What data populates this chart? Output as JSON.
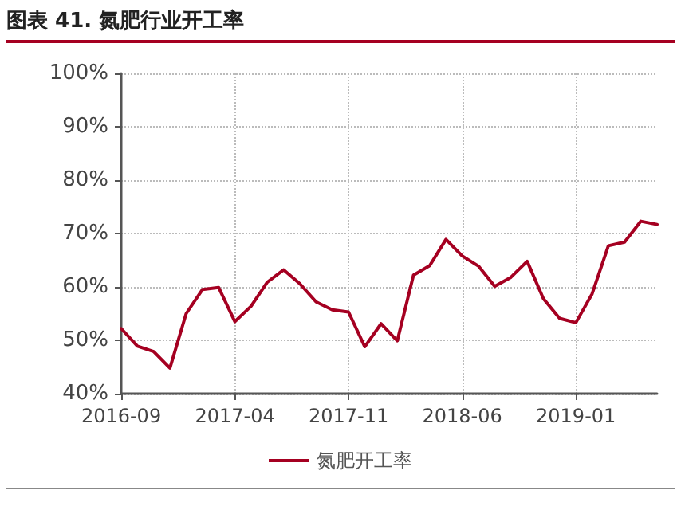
{
  "chart_data": {
    "type": "line",
    "title": "图表 41. 氮肥行业开工率",
    "categories": [
      "2016-09",
      null,
      null,
      null,
      null,
      null,
      null,
      "2017-04",
      null,
      null,
      null,
      null,
      null,
      null,
      "2017-11",
      null,
      null,
      null,
      null,
      null,
      null,
      "2018-06",
      null,
      null,
      null,
      null,
      null,
      null,
      "2019-01",
      null,
      null,
      null,
      null,
      null
    ],
    "series": [
      {
        "name": "氮肥开工率",
        "color": "#a50021",
        "values": [
          52.2,
          48.9,
          47.9,
          44.8,
          55.0,
          59.5,
          59.9,
          53.5,
          56.4,
          60.9,
          63.2,
          60.6,
          57.2,
          55.7,
          55.3,
          48.8,
          53.1,
          49.9,
          62.2,
          64.0,
          68.9,
          65.8,
          63.9,
          60.1,
          61.8,
          64.8,
          57.8,
          54.1,
          53.3,
          58.7,
          67.7,
          68.4,
          72.3,
          71.7
        ]
      }
    ],
    "ylim": [
      40,
      100
    ],
    "yticks": [
      {
        "value": 40,
        "label": "40%"
      },
      {
        "value": 50,
        "label": "50%"
      },
      {
        "value": 60,
        "label": "60%"
      },
      {
        "value": 70,
        "label": "70%"
      },
      {
        "value": 80,
        "label": "80%"
      },
      {
        "value": 90,
        "label": "90%"
      },
      {
        "value": 100,
        "label": "100%"
      }
    ],
    "grid": true,
    "legend": "bottom",
    "marker": "none",
    "line_style": "solid"
  }
}
